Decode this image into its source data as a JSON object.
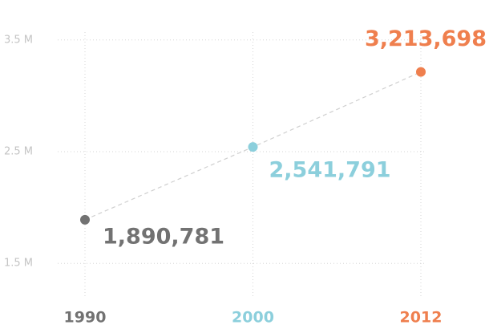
{
  "chart_data": {
    "type": "line",
    "categories": [
      "1990",
      "2000",
      "2012"
    ],
    "values": [
      1890781,
      2541791,
      3213698
    ],
    "value_labels": [
      "1,890,781",
      "2,541,791",
      "3,213,698"
    ],
    "colors": [
      "#727272",
      "#8ccfdc",
      "#ef7f4e"
    ],
    "line_color": "#cfcfcf",
    "ylim": [
      1200000,
      3800000
    ],
    "yticks": [
      {
        "value": 1500000,
        "label": "1.5 M"
      },
      {
        "value": 2500000,
        "label": "2.5 M"
      },
      {
        "value": 3500000,
        "label": "3.5 M"
      }
    ],
    "grid": true
  }
}
